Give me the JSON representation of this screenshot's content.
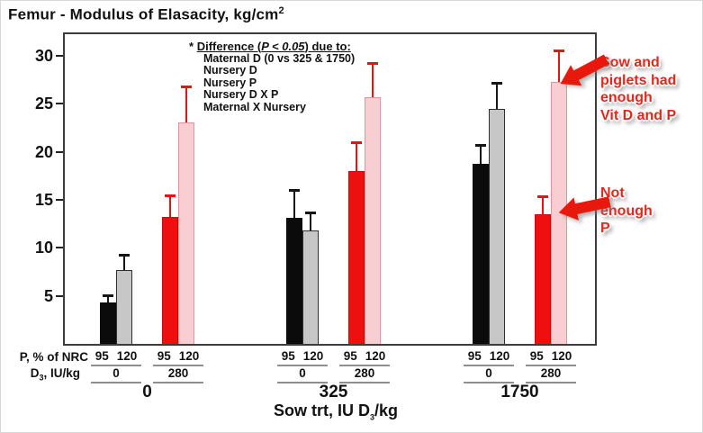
{
  "theme": {
    "bar_black": "#0b0b0b",
    "bar_gray": "#c7c7c7",
    "bar_gray_border": "#2f2f2f",
    "bar_red": "#ee0f0f",
    "bar_red_border": "#c90a0a",
    "bar_pink": "#f9ced2",
    "bar_pink_border": "#e2949b",
    "err_dark": "#151515",
    "err_red": "#ee0f0f",
    "annotation_red": "#e5271b",
    "arrow_red": "#e8190c"
  },
  "chart_data": {
    "type": "bar",
    "title": {
      "text": "Femur - Modulus of Elasacity, kg/cm",
      "sup": "2"
    },
    "xlabel": {
      "pre": "Sow trt, IU D",
      "sub": "3",
      "post": "/kg"
    },
    "ylabel": "",
    "ylim": [
      0,
      32.5
    ],
    "yticks": [
      5,
      10,
      15,
      20,
      25,
      30
    ],
    "grid": false,
    "row_labels": {
      "p_row": "P, % of NRC",
      "d_row": {
        "pre": "D",
        "sub": "3",
        "post": ", IU/kg"
      }
    },
    "groups": [
      {
        "label": "0",
        "pairs": [
          {
            "d3_label": "0",
            "bars": [
              {
                "p_label": "95",
                "style": "black",
                "value": 4.3,
                "err": 0.9
              },
              {
                "p_label": "120",
                "style": "gray",
                "value": 7.7,
                "err": 1.7
              }
            ]
          },
          {
            "d3_label": "280",
            "bars": [
              {
                "p_label": "95",
                "style": "red",
                "value": 13.2,
                "err": 2.4
              },
              {
                "p_label": "120",
                "style": "pink",
                "value": 23.1,
                "err": 3.8
              }
            ]
          }
        ]
      },
      {
        "label": "325",
        "pairs": [
          {
            "d3_label": "0",
            "bars": [
              {
                "p_label": "95",
                "style": "black",
                "value": 13.1,
                "err": 3.0
              },
              {
                "p_label": "120",
                "style": "gray",
                "value": 11.8,
                "err": 2.0
              }
            ]
          },
          {
            "d3_label": "280",
            "bars": [
              {
                "p_label": "95",
                "style": "red",
                "value": 18.0,
                "err": 3.1
              },
              {
                "p_label": "120",
                "style": "pink",
                "value": 25.7,
                "err": 3.6
              }
            ]
          }
        ]
      },
      {
        "label": "1750",
        "pairs": [
          {
            "d3_label": "0",
            "bars": [
              {
                "p_label": "95",
                "style": "black",
                "value": 18.7,
                "err": 2.1
              },
              {
                "p_label": "120",
                "style": "gray",
                "value": 24.5,
                "err": 2.8
              }
            ]
          },
          {
            "d3_label": "280",
            "bars": [
              {
                "p_label": "95",
                "style": "red",
                "value": 13.5,
                "err": 2.0
              },
              {
                "p_label": "120",
                "style": "pink",
                "value": 27.3,
                "err": 3.3
              }
            ]
          }
        ]
      }
    ]
  },
  "legend": {
    "star": "*",
    "heading_pre": "Difference (",
    "heading_italic": "P < 0.05",
    "heading_post": ") due to:",
    "items": [
      "Maternal D (0 vs 325 & 1750)",
      "Nursery D",
      "Nursery P",
      "Nursery D X P",
      "Maternal X Nursery"
    ]
  },
  "annotations": [
    {
      "lines": [
        "Sow and",
        "piglets had",
        "enough",
        "Vit D and P"
      ]
    },
    {
      "lines": [
        "Not",
        "enough",
        "P"
      ]
    }
  ]
}
